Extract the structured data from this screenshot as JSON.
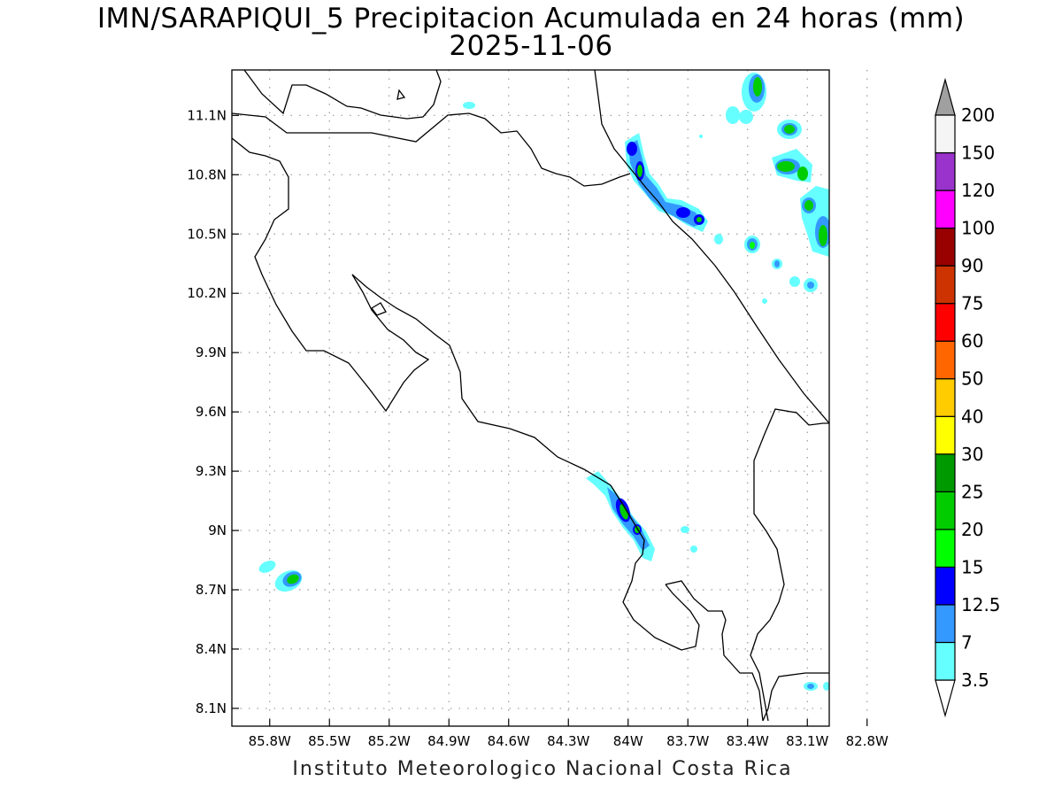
{
  "title": "IMN/SARAPIQUI_5 Precipitacion Acumulada en 24 horas (mm)",
  "subtitle": "2025-11-06",
  "footer": "Instituto Meteorologico Nacional Costa Rica",
  "map": {
    "lon_range": [
      -85.99,
      -82.99
    ],
    "lat_range": [
      8.01,
      11.33
    ],
    "x_ticks": [
      "85.8W",
      "85.5W",
      "85.2W",
      "84.9W",
      "84.6W",
      "84.3W",
      "84W",
      "83.7W",
      "83.4W",
      "83.1W",
      "82.8W"
    ],
    "y_ticks": [
      "11.1N",
      "10.8N",
      "10.5N",
      "10.2N",
      "9.9N",
      "9.6N",
      "9.3N",
      "9N",
      "8.7N",
      "8.4N",
      "8.1N"
    ],
    "grid": "dotted"
  },
  "colorbar": {
    "levels": [
      "3.5",
      "7",
      "12.5",
      "15",
      "20",
      "25",
      "30",
      "40",
      "50",
      "60",
      "75",
      "90",
      "100",
      "120",
      "150",
      "200"
    ],
    "colors": [
      "#66ffff",
      "#3399ff",
      "#0000ff",
      "#00ff00",
      "#00cc00",
      "#009900",
      "#ffff00",
      "#ffcc00",
      "#ff6600",
      "#ff0000",
      "#cc3300",
      "#990000",
      "#ff00ff",
      "#9933cc",
      "#f5f5f5",
      "#a0a0a0"
    ]
  }
}
